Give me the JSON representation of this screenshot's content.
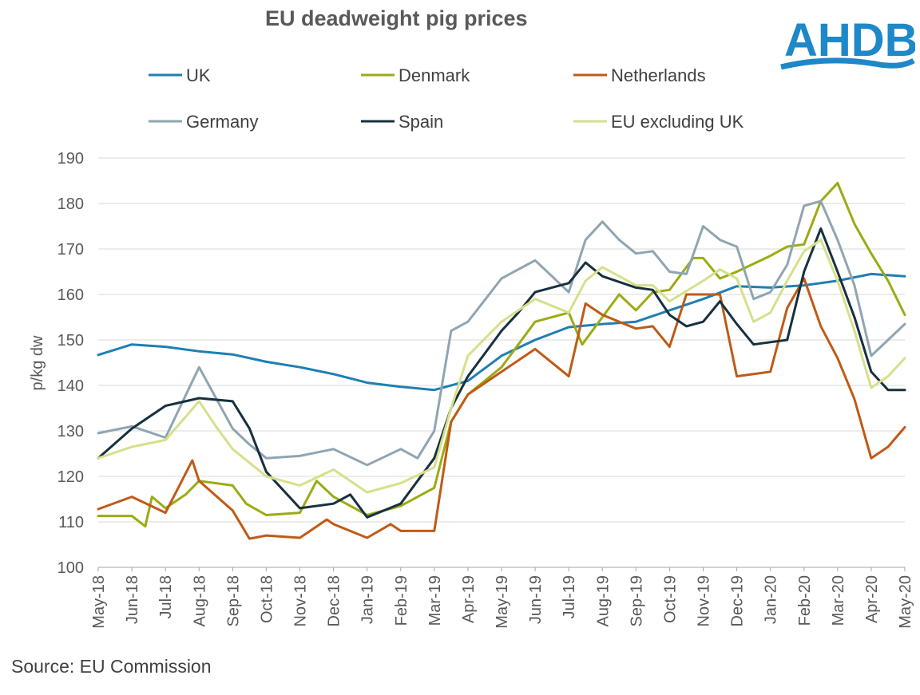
{
  "chart_data": {
    "type": "line",
    "title": "EU deadweight pig prices",
    "ylabel": "p/kg dw",
    "xlabel": "",
    "ylim": [
      100,
      190
    ],
    "y_ticks": [
      100,
      110,
      120,
      130,
      140,
      150,
      160,
      170,
      180,
      190
    ],
    "x_tick_labels": [
      "May-18",
      "Jun-18",
      "Jul-18",
      "Aug-18",
      "Sep-18",
      "Oct-18",
      "Nov-18",
      "Dec-18",
      "Jan-19",
      "Feb-19",
      "Mar-19",
      "Apr-19",
      "May-19",
      "Jun-19",
      "Jul-19",
      "Aug-19",
      "Sep-19",
      "Oct-19",
      "Nov-19",
      "Dec-19",
      "Jan-20",
      "Feb-20",
      "Mar-20",
      "Apr-20",
      "May-20"
    ],
    "x_range": [
      0,
      24
    ],
    "grid": "horizontal",
    "legend_position": "top",
    "series": [
      {
        "name": "UK",
        "color": "#1f7fb2",
        "points": [
          [
            0,
            146.7
          ],
          [
            1,
            149.0
          ],
          [
            2,
            148.5
          ],
          [
            3,
            147.5
          ],
          [
            4,
            146.8
          ],
          [
            5,
            145.2
          ],
          [
            6,
            144.0
          ],
          [
            7,
            142.5
          ],
          [
            8,
            140.6
          ],
          [
            9,
            139.7
          ],
          [
            10,
            139.0
          ],
          [
            11,
            141.0
          ],
          [
            12,
            146.5
          ],
          [
            13,
            150.0
          ],
          [
            14,
            152.8
          ],
          [
            15,
            153.5
          ],
          [
            16,
            154.0
          ],
          [
            17,
            156.5
          ],
          [
            18,
            159.0
          ],
          [
            19,
            161.8
          ],
          [
            20,
            161.5
          ],
          [
            21,
            162.0
          ],
          [
            22,
            163.0
          ],
          [
            23,
            164.5
          ],
          [
            24,
            164.0
          ]
        ]
      },
      {
        "name": "Denmark",
        "color": "#9bab14",
        "points": [
          [
            0,
            111.3
          ],
          [
            1,
            111.3
          ],
          [
            1.4,
            109.0
          ],
          [
            1.6,
            115.5
          ],
          [
            2,
            113.0
          ],
          [
            2.6,
            116.0
          ],
          [
            3,
            119.0
          ],
          [
            4,
            118.0
          ],
          [
            4.4,
            114.0
          ],
          [
            5,
            111.5
          ],
          [
            6,
            112.0
          ],
          [
            6.5,
            119.0
          ],
          [
            7,
            115.5
          ],
          [
            8,
            111.5
          ],
          [
            9,
            113.5
          ],
          [
            10,
            117.5
          ],
          [
            10.5,
            132.0
          ],
          [
            11,
            138.0
          ],
          [
            12,
            144.0
          ],
          [
            13,
            154.0
          ],
          [
            14,
            156.0
          ],
          [
            14.4,
            149.0
          ],
          [
            15,
            155.0
          ],
          [
            15.5,
            160.0
          ],
          [
            16,
            156.5
          ],
          [
            16.5,
            160.5
          ],
          [
            17,
            161.0
          ],
          [
            17.7,
            168.0
          ],
          [
            18,
            168.0
          ],
          [
            18.5,
            163.5
          ],
          [
            19,
            165.0
          ],
          [
            20,
            168.5
          ],
          [
            20.5,
            170.5
          ],
          [
            21,
            171.0
          ],
          [
            21.5,
            180.5
          ],
          [
            22,
            184.5
          ],
          [
            22.5,
            175.5
          ],
          [
            23,
            169.0
          ],
          [
            23.5,
            163.0
          ],
          [
            24,
            155.5
          ]
        ]
      },
      {
        "name": "Netherlands",
        "color": "#c05a16",
        "points": [
          [
            0,
            112.8
          ],
          [
            1,
            115.5
          ],
          [
            2,
            112.0
          ],
          [
            2.8,
            123.5
          ],
          [
            3,
            119.0
          ],
          [
            4,
            112.5
          ],
          [
            4.5,
            106.3
          ],
          [
            5,
            107.0
          ],
          [
            6,
            106.5
          ],
          [
            6.8,
            110.5
          ],
          [
            7,
            109.5
          ],
          [
            8,
            106.5
          ],
          [
            8.7,
            109.5
          ],
          [
            9,
            108.0
          ],
          [
            10,
            108.0
          ],
          [
            10.5,
            132.0
          ],
          [
            11,
            138.0
          ],
          [
            12,
            143.0
          ],
          [
            13,
            148.0
          ],
          [
            14,
            142.0
          ],
          [
            14.5,
            158.0
          ],
          [
            15,
            155.5
          ],
          [
            16,
            152.5
          ],
          [
            16.5,
            153.0
          ],
          [
            17,
            148.5
          ],
          [
            17.5,
            160.0
          ],
          [
            18,
            160.0
          ],
          [
            18.5,
            160.0
          ],
          [
            19,
            142.0
          ],
          [
            20,
            143.0
          ],
          [
            20.5,
            157.0
          ],
          [
            21,
            163.5
          ],
          [
            21.5,
            153.0
          ],
          [
            22,
            146.0
          ],
          [
            22.5,
            137.0
          ],
          [
            23,
            124.0
          ],
          [
            23.5,
            126.5
          ],
          [
            24,
            130.8
          ]
        ]
      },
      {
        "name": "Germany",
        "color": "#8fa5b1",
        "points": [
          [
            0,
            129.5
          ],
          [
            1,
            131.0
          ],
          [
            2,
            128.5
          ],
          [
            3,
            144.0
          ],
          [
            4,
            130.5
          ],
          [
            4.5,
            127.0
          ],
          [
            5,
            124.0
          ],
          [
            6,
            124.5
          ],
          [
            7,
            126.0
          ],
          [
            8,
            122.5
          ],
          [
            9,
            126.0
          ],
          [
            9.5,
            124.0
          ],
          [
            10,
            130.0
          ],
          [
            10.5,
            152.0
          ],
          [
            11,
            154.0
          ],
          [
            12,
            163.5
          ],
          [
            13,
            167.5
          ],
          [
            14,
            160.5
          ],
          [
            14.5,
            172.0
          ],
          [
            15,
            176.0
          ],
          [
            15.5,
            172.0
          ],
          [
            16,
            169.0
          ],
          [
            16.5,
            169.5
          ],
          [
            17,
            165.0
          ],
          [
            17.5,
            164.5
          ],
          [
            18,
            175.0
          ],
          [
            18.5,
            172.0
          ],
          [
            19,
            170.5
          ],
          [
            19.5,
            159.0
          ],
          [
            20,
            160.5
          ],
          [
            20.5,
            166.5
          ],
          [
            21,
            179.5
          ],
          [
            21.5,
            180.5
          ],
          [
            22,
            172.0
          ],
          [
            22.5,
            162.0
          ],
          [
            23,
            146.5
          ],
          [
            23.5,
            150.0
          ],
          [
            24,
            153.5
          ]
        ]
      },
      {
        "name": "Spain",
        "color": "#17303f",
        "points": [
          [
            0,
            124.0
          ],
          [
            1,
            130.5
          ],
          [
            2,
            135.5
          ],
          [
            3,
            137.2
          ],
          [
            4,
            136.5
          ],
          [
            4.5,
            130.5
          ],
          [
            5,
            121.0
          ],
          [
            6,
            113.0
          ],
          [
            7,
            114.0
          ],
          [
            7.5,
            116.0
          ],
          [
            8,
            111.0
          ],
          [
            9,
            114.0
          ],
          [
            10,
            124.0
          ],
          [
            10.5,
            135.0
          ],
          [
            11,
            142.0
          ],
          [
            12,
            152.0
          ],
          [
            12.5,
            156.0
          ],
          [
            13,
            160.5
          ],
          [
            14,
            162.5
          ],
          [
            14.5,
            167.0
          ],
          [
            15,
            164.0
          ],
          [
            16,
            161.5
          ],
          [
            16.5,
            161.0
          ],
          [
            17,
            155.5
          ],
          [
            17.5,
            153.0
          ],
          [
            18,
            154.0
          ],
          [
            18.5,
            158.5
          ],
          [
            19,
            153.5
          ],
          [
            19.5,
            149.0
          ],
          [
            20,
            149.5
          ],
          [
            20.5,
            150.0
          ],
          [
            21,
            165.0
          ],
          [
            21.5,
            174.5
          ],
          [
            22,
            165.0
          ],
          [
            22.5,
            155.0
          ],
          [
            23,
            143.0
          ],
          [
            23.5,
            139.0
          ],
          [
            24,
            139.0
          ]
        ]
      },
      {
        "name": "EU excluding UK",
        "color": "#d6e08a",
        "points": [
          [
            0,
            124.0
          ],
          [
            1,
            126.5
          ],
          [
            2,
            128.0
          ],
          [
            3,
            136.5
          ],
          [
            3.5,
            131.0
          ],
          [
            4,
            126.0
          ],
          [
            5,
            120.0
          ],
          [
            6,
            118.0
          ],
          [
            7,
            121.5
          ],
          [
            8,
            116.5
          ],
          [
            9,
            118.5
          ],
          [
            10,
            122.0
          ],
          [
            10.5,
            135.0
          ],
          [
            11,
            146.5
          ],
          [
            12,
            154.0
          ],
          [
            13,
            159.0
          ],
          [
            14,
            156.0
          ],
          [
            14.5,
            163.0
          ],
          [
            15,
            166.0
          ],
          [
            16,
            162.0
          ],
          [
            16.5,
            162.0
          ],
          [
            17,
            158.5
          ],
          [
            18,
            163.0
          ],
          [
            18.5,
            165.5
          ],
          [
            19,
            163.5
          ],
          [
            19.5,
            154.0
          ],
          [
            20,
            156.0
          ],
          [
            20.5,
            163.0
          ],
          [
            21,
            169.5
          ],
          [
            21.5,
            172.0
          ],
          [
            22,
            163.0
          ],
          [
            22.5,
            152.0
          ],
          [
            23,
            139.5
          ],
          [
            23.5,
            142.0
          ],
          [
            24,
            146.0
          ]
        ]
      }
    ]
  },
  "logo": {
    "text": "AHDB",
    "color": "#1e88c8"
  },
  "source": "Source: EU Commission"
}
